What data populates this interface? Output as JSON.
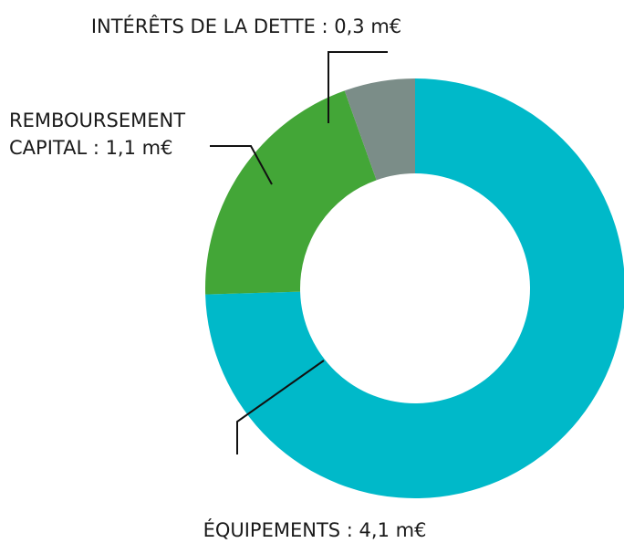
{
  "chart_data": {
    "type": "donut",
    "values": [
      4.1,
      1.1,
      0.3
    ],
    "value_labels": [
      [
        "ÉQUIPEMENTS : 4,1 m€"
      ],
      [
        "REMBOURSEMENT",
        "CAPITAL : 1,1 m€"
      ],
      [
        "INTÉRÊTS DE LA DETTE : 0,3 m€"
      ]
    ],
    "colors": [
      "#00b9c9",
      "#43a637",
      "#7b8d88"
    ]
  }
}
